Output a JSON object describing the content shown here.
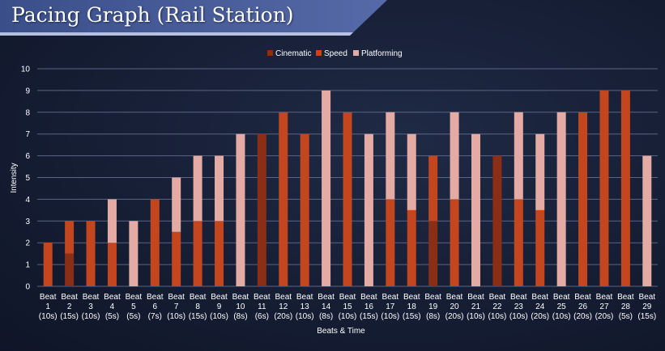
{
  "title": "Pacing Graph (Rail Station)",
  "colors": {
    "Cinematic": "#8b2e16",
    "Speed": "#c4461f",
    "Platforming": "#e3aba3",
    "grid": "#5a6484",
    "text": "#ffffff"
  },
  "chart_data": {
    "type": "bar",
    "stacked": true,
    "xlabel": "Beats & Time",
    "ylabel": "Intensity",
    "ylim": [
      0,
      10
    ],
    "yticks": [
      0,
      1,
      2,
      3,
      4,
      5,
      6,
      7,
      8,
      9,
      10
    ],
    "grid": true,
    "legend_position": "top",
    "legend": [
      "Cinematic",
      "Speed",
      "Platforming"
    ],
    "categories": [
      [
        "Beat",
        "1",
        "(10s)"
      ],
      [
        "Beat",
        "2",
        "(15s)"
      ],
      [
        "Beat",
        "3",
        "(10s)"
      ],
      [
        "Beat",
        "4",
        "(5s)"
      ],
      [
        "Beat",
        "5",
        "(5s)"
      ],
      [
        "Beat",
        "6",
        "(7s)"
      ],
      [
        "Beat",
        "7",
        "(10s)"
      ],
      [
        "Beat",
        "8",
        "(15s)"
      ],
      [
        "Beat",
        "9",
        "(10s)"
      ],
      [
        "Beat",
        "10",
        "(8s)"
      ],
      [
        "Beat",
        "11",
        "(6s)"
      ],
      [
        "Beat",
        "12",
        "(20s)"
      ],
      [
        "Beat",
        "13",
        "(10s)"
      ],
      [
        "Beat",
        "14",
        "(8s)"
      ],
      [
        "Beat",
        "15",
        "(10s)"
      ],
      [
        "Beat",
        "16",
        "(15s)"
      ],
      [
        "Beat",
        "17",
        "(10s)"
      ],
      [
        "Beat",
        "18",
        "(15s)"
      ],
      [
        "Beat",
        "19",
        "(8s)"
      ],
      [
        "Beat",
        "20",
        "(20s)"
      ],
      [
        "Beat",
        "21",
        "(10s)"
      ],
      [
        "Beat",
        "22",
        "(10s)"
      ],
      [
        "Beat",
        "23",
        "(10s)"
      ],
      [
        "Beat",
        "24",
        "(20s)"
      ],
      [
        "Beat",
        "25",
        "(10s)"
      ],
      [
        "Beat",
        "26",
        "(20s)"
      ],
      [
        "Beat",
        "27",
        "(20s)"
      ],
      [
        "Beat",
        "28",
        "(5s)"
      ],
      [
        "Beat",
        "29",
        "(15s)"
      ]
    ],
    "series": [
      {
        "name": "Cinematic",
        "values": [
          0,
          1.5,
          0,
          0,
          0,
          0,
          0,
          0,
          0,
          0,
          7,
          0,
          0,
          0,
          0,
          0,
          0,
          0,
          3,
          0,
          0,
          6,
          0,
          0,
          0,
          0,
          0,
          0,
          0
        ]
      },
      {
        "name": "Speed",
        "values": [
          2,
          1.5,
          3,
          2,
          0,
          4,
          2.5,
          3,
          3,
          0,
          0,
          8,
          7,
          0,
          8,
          0,
          4,
          3.5,
          3,
          4,
          0,
          0,
          4,
          3.5,
          0,
          8,
          9,
          9,
          0
        ]
      },
      {
        "name": "Platforming",
        "values": [
          0,
          0,
          0,
          2,
          3,
          0,
          2.5,
          3,
          3,
          7,
          0,
          0,
          0,
          9,
          0,
          7,
          4,
          3.5,
          0,
          4,
          7,
          0,
          4,
          3.5,
          8,
          0,
          0,
          0,
          6
        ]
      }
    ]
  }
}
